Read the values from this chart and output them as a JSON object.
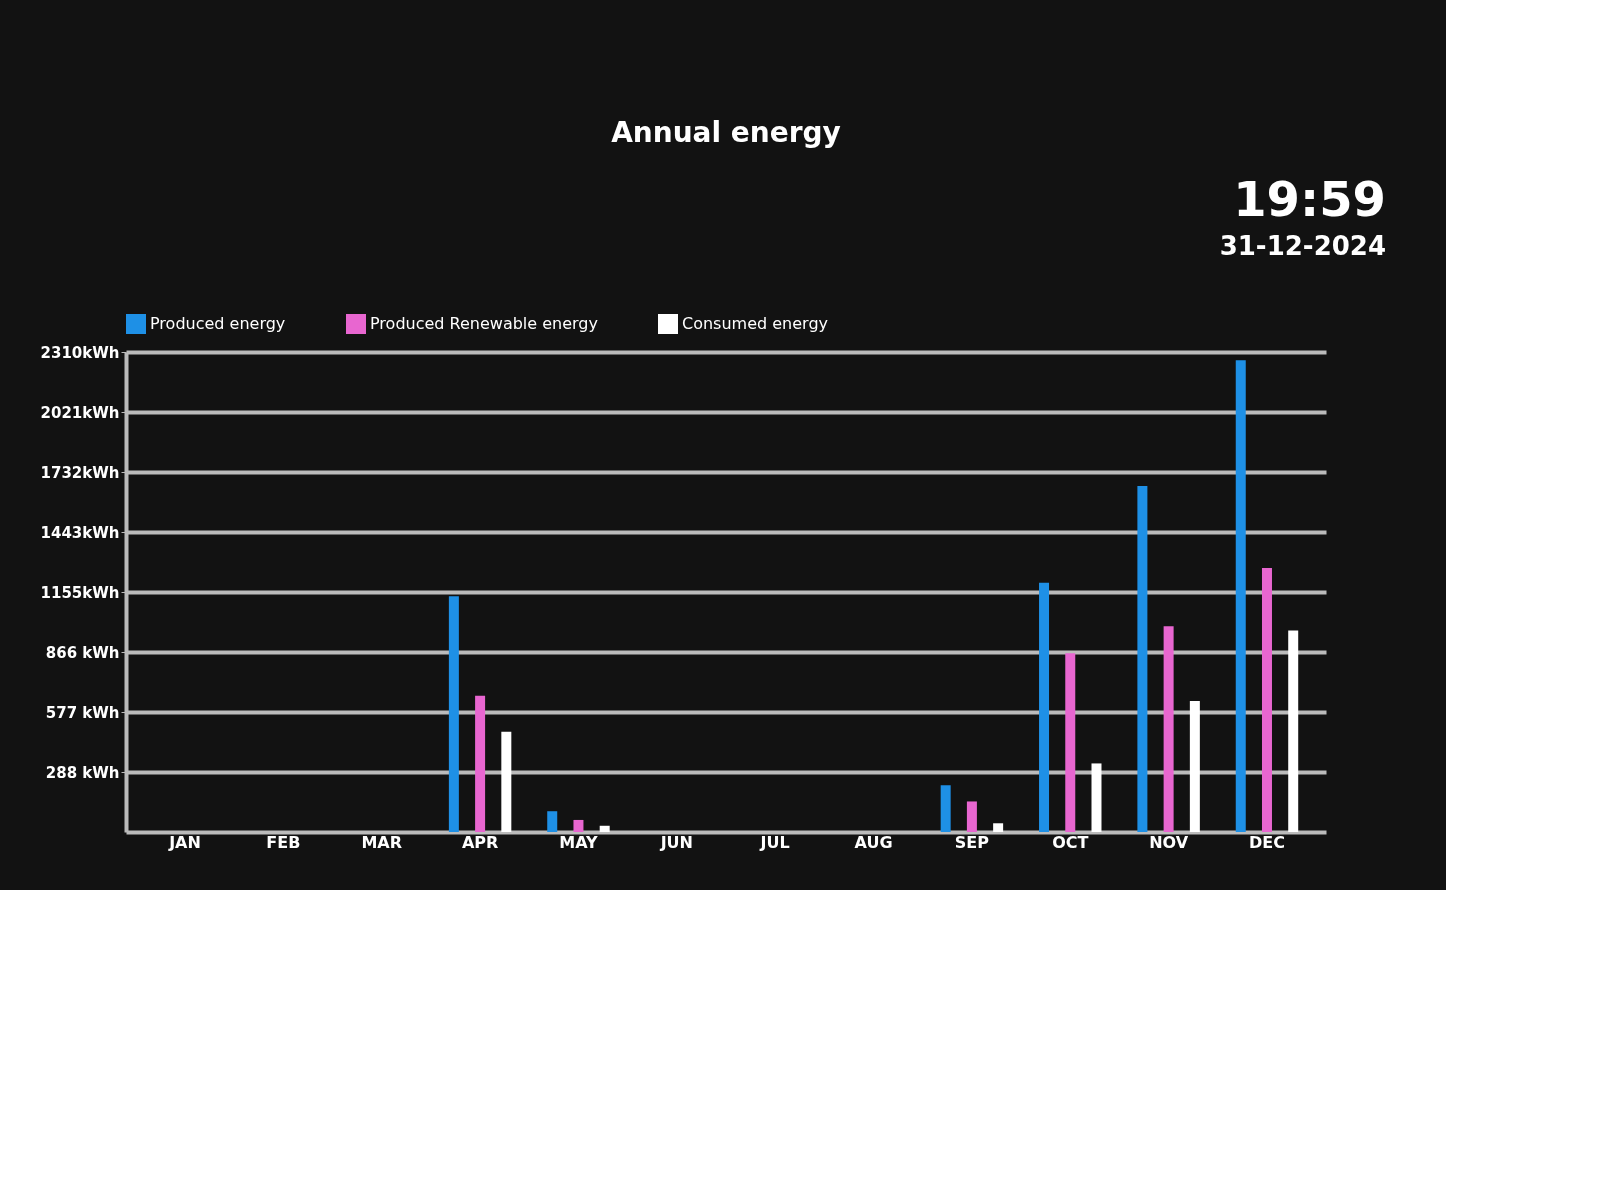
{
  "chart_data": {
    "type": "bar",
    "title": "Annual energy",
    "annotations": [
      "19:59",
      "31-12-2024"
    ],
    "categories": [
      "JAN",
      "FEB",
      "MAR",
      "APR",
      "MAY",
      "JUN",
      "JUL",
      "AUG",
      "SEP",
      "OCT",
      "NOV",
      "DEC"
    ],
    "series": [
      {
        "name": "Produced energy",
        "color": "#1e90e6",
        "values": [
          0,
          0,
          0,
          1135,
          100,
          0,
          0,
          0,
          225,
          1200,
          1665,
          2270
        ]
      },
      {
        "name": "Produced Renewable energy",
        "color": "#e866d0",
        "values": [
          0,
          0,
          0,
          656,
          58,
          0,
          0,
          0,
          147,
          860,
          990,
          1270
        ]
      },
      {
        "name": "Consumed energy",
        "color": "#ffffff",
        "values": [
          0,
          0,
          0,
          483,
          30,
          0,
          0,
          0,
          42,
          330,
          630,
          970
        ]
      }
    ],
    "ylim": [
      0,
      2310
    ],
    "yticks": [
      {
        "value": 288,
        "label": "288  kWh"
      },
      {
        "value": 577,
        "label": "577  kWh"
      },
      {
        "value": 866,
        "label": "866  kWh"
      },
      {
        "value": 1155,
        "label": "1155kWh"
      },
      {
        "value": 1443,
        "label": "1443kWh"
      },
      {
        "value": 1732,
        "label": "1732kWh"
      },
      {
        "value": 2021,
        "label": "2021kWh"
      },
      {
        "value": 2310,
        "label": "2310kWh"
      }
    ],
    "grid": "y",
    "legend": "top"
  }
}
